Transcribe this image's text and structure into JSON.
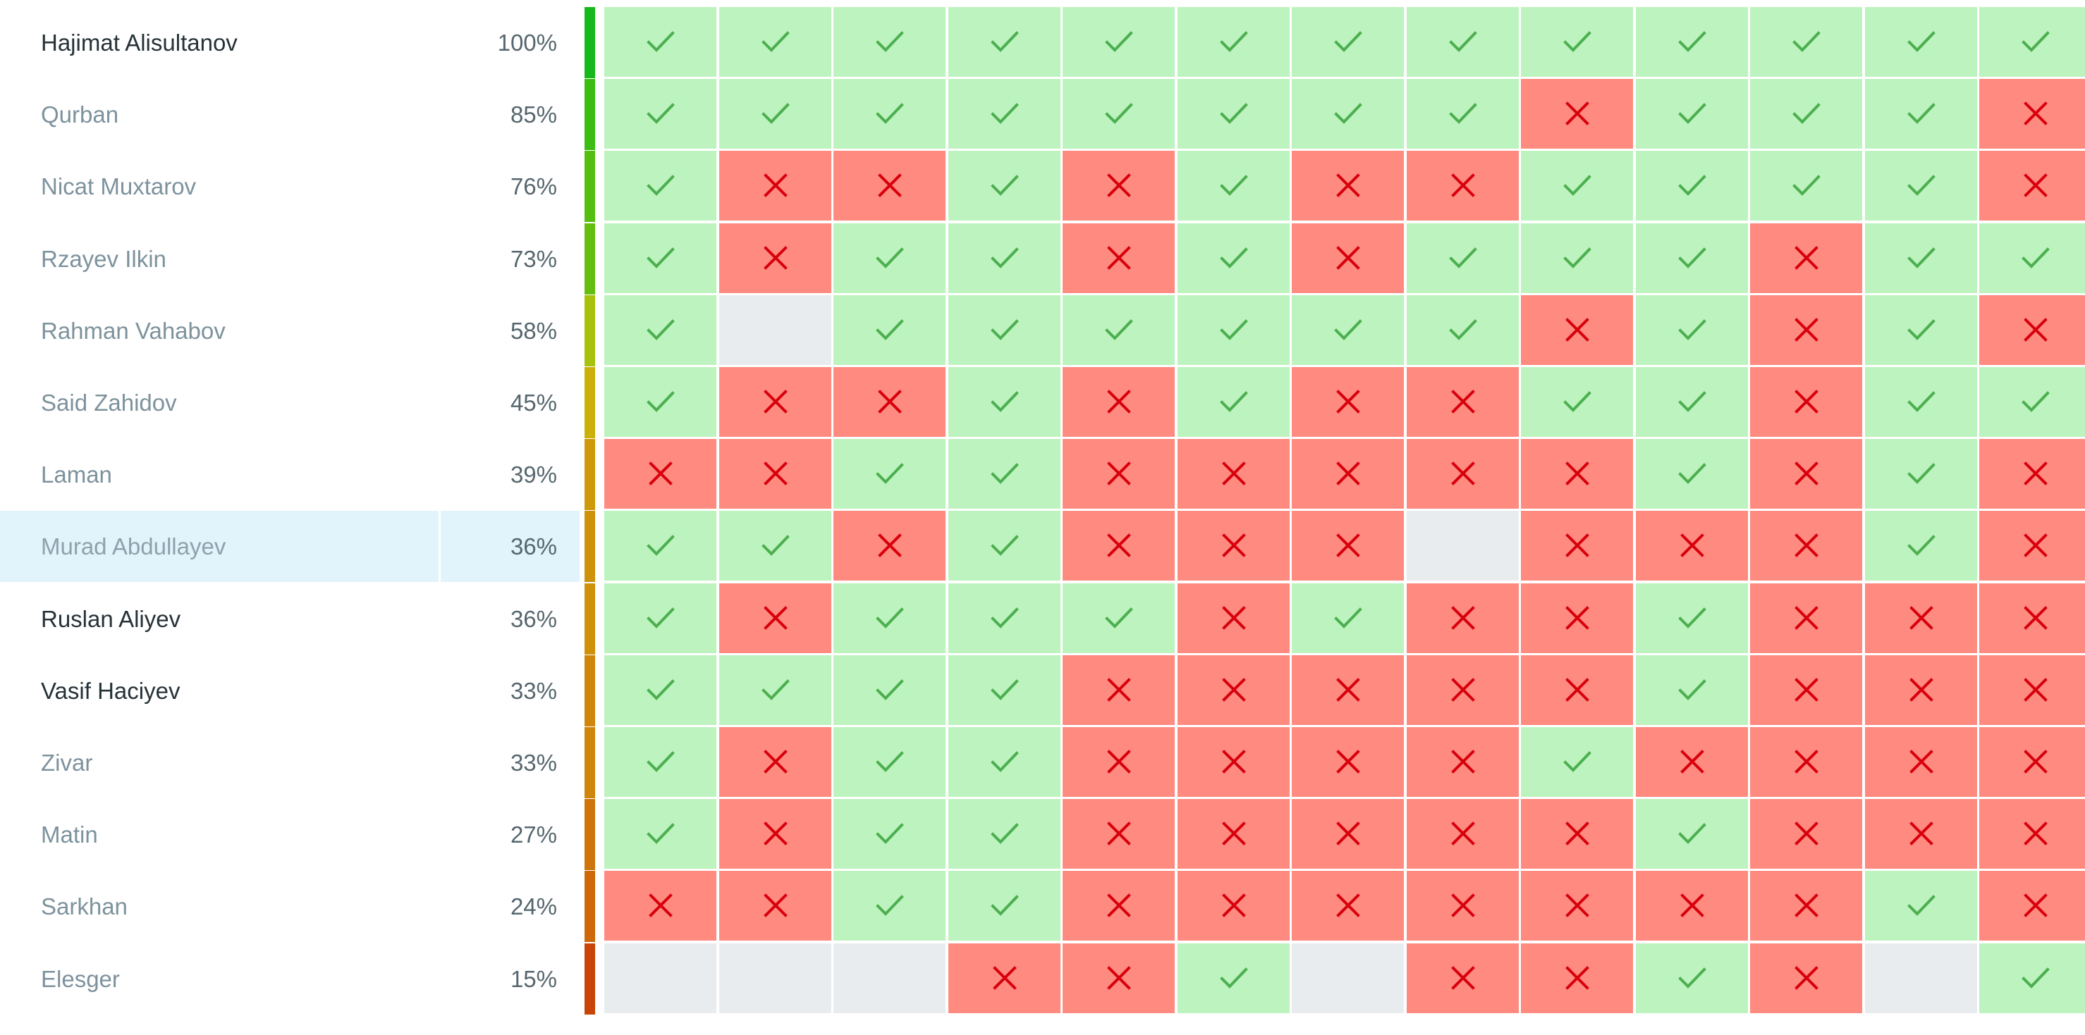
{
  "colors": {
    "correct_bg": "#bdf3be",
    "wrong_bg": "#fe8a80",
    "empty_bg": "#e9ecef",
    "check_icon": "#4caf50",
    "cross_icon": "#d8000c",
    "highlight_row": "#e1f3fb"
  },
  "icons": {
    "correct": "check-icon",
    "wrong": "cross-icon"
  },
  "students": [
    {
      "name": "Hajimat Alisultanov",
      "score": "100%",
      "bar_color": "#16b81c",
      "name_dark": true,
      "highlighted": false,
      "answers": [
        "ok",
        "ok",
        "ok",
        "ok",
        "ok",
        "ok",
        "ok",
        "ok",
        "ok",
        "ok",
        "ok",
        "ok",
        "ok"
      ]
    },
    {
      "name": "Qurban",
      "score": "85%",
      "bar_color": "#3bbd12",
      "name_dark": false,
      "highlighted": false,
      "answers": [
        "ok",
        "ok",
        "ok",
        "ok",
        "ok",
        "ok",
        "ok",
        "ok",
        "bad",
        "ok",
        "ok",
        "ok",
        "bad"
      ]
    },
    {
      "name": "Nicat Muxtarov",
      "score": "76%",
      "bar_color": "#56be10",
      "name_dark": false,
      "highlighted": false,
      "answers": [
        "ok",
        "bad",
        "bad",
        "ok",
        "bad",
        "ok",
        "bad",
        "bad",
        "ok",
        "ok",
        "ok",
        "ok",
        "bad"
      ]
    },
    {
      "name": "Rzayev Ilkin",
      "score": "73%",
      "bar_color": "#64be0f",
      "name_dark": false,
      "highlighted": false,
      "answers": [
        "ok",
        "bad",
        "ok",
        "ok",
        "bad",
        "ok",
        "bad",
        "ok",
        "ok",
        "ok",
        "bad",
        "ok",
        "ok"
      ]
    },
    {
      "name": "Rahman Vahabov",
      "score": "58%",
      "bar_color": "#a8c20c",
      "name_dark": false,
      "highlighted": false,
      "answers": [
        "ok",
        "none",
        "ok",
        "ok",
        "ok",
        "ok",
        "ok",
        "ok",
        "bad",
        "ok",
        "bad",
        "ok",
        "bad"
      ]
    },
    {
      "name": "Said Zahidov",
      "score": "45%",
      "bar_color": "#cbb00a",
      "name_dark": false,
      "highlighted": false,
      "answers": [
        "ok",
        "bad",
        "bad",
        "ok",
        "bad",
        "ok",
        "bad",
        "bad",
        "ok",
        "ok",
        "bad",
        "ok",
        "ok"
      ]
    },
    {
      "name": "Laman",
      "score": "39%",
      "bar_color": "#cf9a0a",
      "name_dark": false,
      "highlighted": false,
      "answers": [
        "bad",
        "bad",
        "ok",
        "ok",
        "bad",
        "bad",
        "bad",
        "bad",
        "bad",
        "ok",
        "bad",
        "ok",
        "bad"
      ]
    },
    {
      "name": "Murad Abdullayev",
      "score": "36%",
      "bar_color": "#cf900a",
      "name_dark": false,
      "highlighted": true,
      "answers": [
        "ok",
        "ok",
        "bad",
        "ok",
        "bad",
        "bad",
        "bad",
        "none",
        "bad",
        "bad",
        "bad",
        "ok",
        "bad"
      ]
    },
    {
      "name": "Ruslan Aliyev",
      "score": "36%",
      "bar_color": "#cf900a",
      "name_dark": true,
      "highlighted": false,
      "answers": [
        "ok",
        "bad",
        "ok",
        "ok",
        "ok",
        "bad",
        "ok",
        "bad",
        "bad",
        "ok",
        "bad",
        "bad",
        "bad"
      ]
    },
    {
      "name": "Vasif Haciyev",
      "score": "33%",
      "bar_color": "#cf860a",
      "name_dark": true,
      "highlighted": false,
      "answers": [
        "ok",
        "ok",
        "ok",
        "ok",
        "bad",
        "bad",
        "bad",
        "bad",
        "bad",
        "ok",
        "bad",
        "bad",
        "bad"
      ]
    },
    {
      "name": "Zivar",
      "score": "33%",
      "bar_color": "#cf860a",
      "name_dark": false,
      "highlighted": false,
      "answers": [
        "ok",
        "bad",
        "ok",
        "ok",
        "bad",
        "bad",
        "bad",
        "bad",
        "ok",
        "bad",
        "bad",
        "bad",
        "bad"
      ]
    },
    {
      "name": "Matin",
      "score": "27%",
      "bar_color": "#cf740a",
      "name_dark": false,
      "highlighted": false,
      "answers": [
        "ok",
        "bad",
        "ok",
        "ok",
        "bad",
        "bad",
        "bad",
        "bad",
        "bad",
        "ok",
        "bad",
        "bad",
        "bad"
      ]
    },
    {
      "name": "Sarkhan",
      "score": "24%",
      "bar_color": "#ce6809",
      "name_dark": false,
      "highlighted": false,
      "answers": [
        "bad",
        "bad",
        "ok",
        "ok",
        "bad",
        "bad",
        "bad",
        "bad",
        "bad",
        "bad",
        "bad",
        "ok",
        "bad"
      ]
    },
    {
      "name": "Elesger",
      "score": "15%",
      "bar_color": "#c94507",
      "name_dark": false,
      "highlighted": false,
      "answers": [
        "none",
        "none",
        "none",
        "bad",
        "bad",
        "ok",
        "none",
        "bad",
        "bad",
        "ok",
        "bad",
        "none",
        "ok"
      ]
    }
  ]
}
